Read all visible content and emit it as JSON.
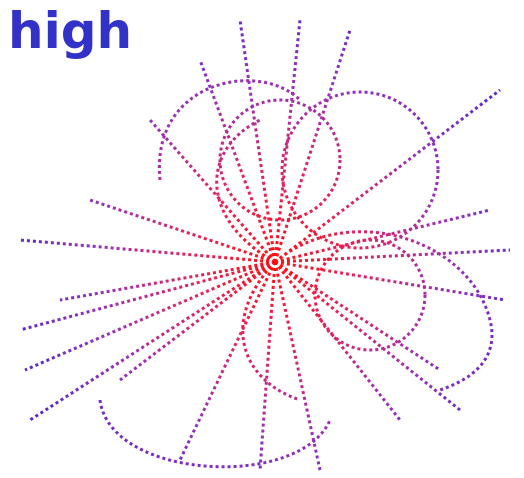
{
  "heading": "high"
}
